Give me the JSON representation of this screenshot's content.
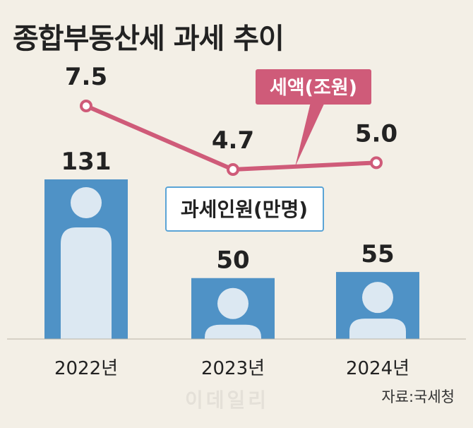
{
  "title": "종합부동산세 과세 추이",
  "source": "자료:국세청",
  "watermark": "이데일리",
  "colors": {
    "background": "#f3efe6",
    "bar": "#4f92c6",
    "person": "#dce8f2",
    "line": "#cf5b79",
    "callout_border": "#5aa4d6"
  },
  "chart_data": {
    "type": "bar+line",
    "categories": [
      "2022년",
      "2023년",
      "2024년"
    ],
    "series": [
      {
        "name": "과세인원(만명)",
        "type": "bar",
        "values": [
          131,
          50,
          55
        ],
        "value_labels": [
          "131",
          "50",
          "55"
        ]
      },
      {
        "name": "세액(조원)",
        "type": "line",
        "values": [
          7.5,
          4.7,
          5.0
        ],
        "value_labels": [
          "7.5",
          "4.7",
          "5.0"
        ]
      }
    ],
    "legend": {
      "line_label": "세액(조원)",
      "bar_label": "과세인원(만명)"
    },
    "icons": [
      "person-icon",
      "person-icon",
      "person-icon"
    ]
  }
}
